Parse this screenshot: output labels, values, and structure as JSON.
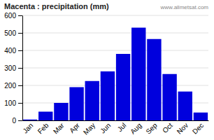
{
  "chart_data": {
    "type": "bar",
    "title": "Macenta : precipitation (mm)",
    "categories": [
      "Jan",
      "Feb",
      "Mar",
      "Apr",
      "May",
      "Jun",
      "Jul",
      "Aug",
      "Sep",
      "Oct",
      "Nov",
      "Dec"
    ],
    "values": [
      5,
      50,
      100,
      190,
      225,
      280,
      380,
      530,
      465,
      265,
      165,
      45
    ],
    "color": "#0000dd",
    "ylim": [
      0,
      600
    ],
    "yticks": [
      0,
      100,
      200,
      300,
      400,
      500,
      600
    ],
    "grid": true,
    "annotations": [
      "www.allmetsat.com"
    ]
  }
}
